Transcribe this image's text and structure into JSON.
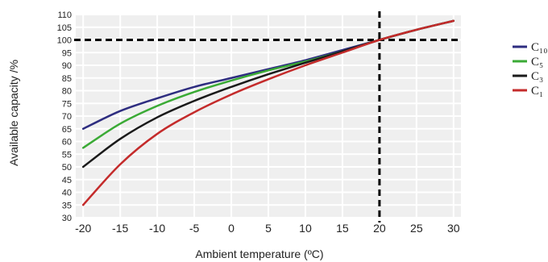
{
  "chart_data": {
    "type": "line",
    "xlabel": "Ambient temperature (ºC)",
    "ylabel": "Available capacity /%",
    "xlim": [
      -21,
      31
    ],
    "ylim": [
      30,
      110
    ],
    "x_ticks": [
      -20,
      -15,
      -10,
      -5,
      0,
      5,
      10,
      15,
      20,
      25,
      30
    ],
    "y_ticks": [
      30,
      35,
      40,
      45,
      50,
      55,
      60,
      65,
      70,
      75,
      80,
      85,
      90,
      95,
      100,
      105,
      110
    ],
    "grid": true,
    "legend_position": "right",
    "reference_lines": [
      {
        "axis": "x",
        "value": 20,
        "style": "dashed"
      },
      {
        "axis": "y",
        "value": 100,
        "style": "dashed"
      }
    ],
    "series": [
      {
        "name": "C₁₀",
        "color": "#2e2d80",
        "x": [
          -20,
          -15,
          -10,
          -5,
          0,
          5,
          10,
          15,
          20,
          25,
          30
        ],
        "y": [
          65,
          72,
          77,
          81.5,
          85,
          88.5,
          92,
          96,
          100,
          104,
          107.5
        ]
      },
      {
        "name": "C₅",
        "color": "#3aaa35",
        "x": [
          -20,
          -15,
          -10,
          -5,
          0,
          5,
          10,
          15,
          20,
          25,
          30
        ],
        "y": [
          57.5,
          67,
          74,
          79.5,
          84,
          88,
          91.5,
          95.5,
          100,
          104,
          107.5
        ]
      },
      {
        "name": "C₃",
        "color": "#1a1a1a",
        "x": [
          -20,
          -15,
          -10,
          -5,
          0,
          5,
          10,
          15,
          20,
          25,
          30
        ],
        "y": [
          50,
          61,
          69.5,
          76,
          81.5,
          86.5,
          91,
          95.5,
          100,
          104,
          107.5
        ]
      },
      {
        "name": "C₁",
        "color": "#c42b2b",
        "x": [
          -20,
          -15,
          -10,
          -5,
          0,
          5,
          10,
          15,
          20,
          25,
          30
        ],
        "y": [
          35,
          51,
          63,
          71.5,
          78.5,
          84.5,
          90,
          95,
          100,
          104,
          107.5
        ]
      }
    ]
  }
}
